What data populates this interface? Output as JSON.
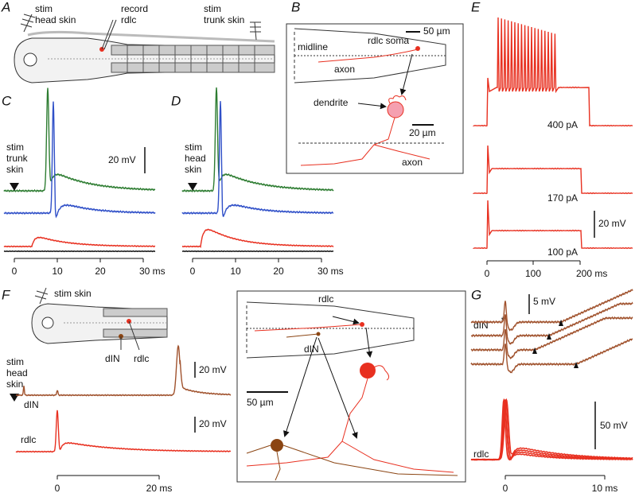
{
  "panels": {
    "A": {
      "label": "A",
      "texts": [
        "stim",
        "head skin",
        "record",
        "rdlc",
        "stim",
        "trunk skin"
      ]
    },
    "B": {
      "label": "B",
      "texts": [
        "50 µm",
        "rdlc soma",
        "midline",
        "axon",
        "dendrite",
        "20 µm",
        "axon"
      ]
    },
    "C": {
      "label": "C",
      "texts": [
        "stim",
        "trunk",
        "skin",
        "20 mV"
      ],
      "ticks": [
        "0",
        "10",
        "20",
        "30 ms"
      ]
    },
    "D": {
      "label": "D",
      "texts": [
        "stim",
        "head",
        "skin"
      ],
      "ticks": [
        "0",
        "10",
        "20",
        "30 ms"
      ]
    },
    "E": {
      "label": "E",
      "texts": [
        "400 pA",
        "170 pA",
        "100 pA",
        "20 mV"
      ],
      "ticks": [
        "0",
        "100",
        "200 ms"
      ]
    },
    "F": {
      "label": "F",
      "texts": [
        "stim skin",
        "stim",
        "head",
        "skin",
        "dIN",
        "rdlc",
        "20 mV",
        "dIN",
        "20 mV",
        "rdlc",
        "rdlc",
        "dIN",
        "50 µm"
      ],
      "ticks": [
        "0",
        "20 ms"
      ]
    },
    "G": {
      "label": "G",
      "texts": [
        "*",
        "5 mV",
        "dIN",
        "50 mV",
        "rdlc"
      ],
      "ticks": [
        "0",
        "10 ms"
      ]
    }
  }
}
